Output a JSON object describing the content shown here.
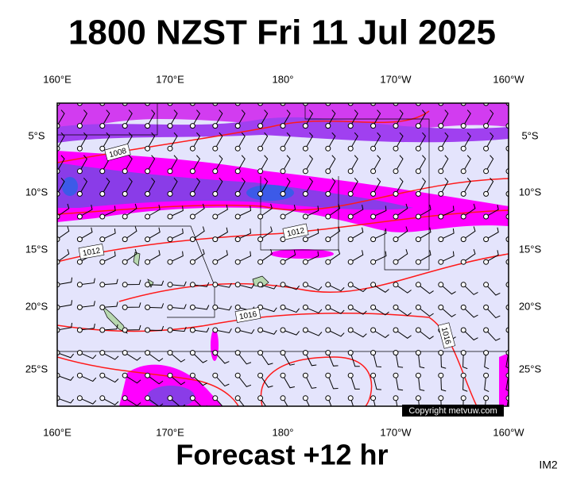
{
  "title": "1800 NZST Fri 11 Jul 2025",
  "footer": "Forecast +12 hr",
  "corner_label": "IM2",
  "copyright": "Copyright metvuw.com",
  "map": {
    "top_labels": [
      "160°E",
      "170°E",
      "180°",
      "170°W",
      "160°W"
    ],
    "bottom_labels": [
      "160°E",
      "170°E",
      "180°",
      "170°W",
      "160°W"
    ],
    "left_labels": [
      "5°S",
      "10°S",
      "15°S",
      "20°S",
      "25°S"
    ],
    "right_labels": [
      "5°S",
      "10°S",
      "15°S",
      "20°S",
      "25°S"
    ],
    "isobar_labels": [
      "1008",
      "1012",
      "1012",
      "1016",
      "1016"
    ]
  }
}
